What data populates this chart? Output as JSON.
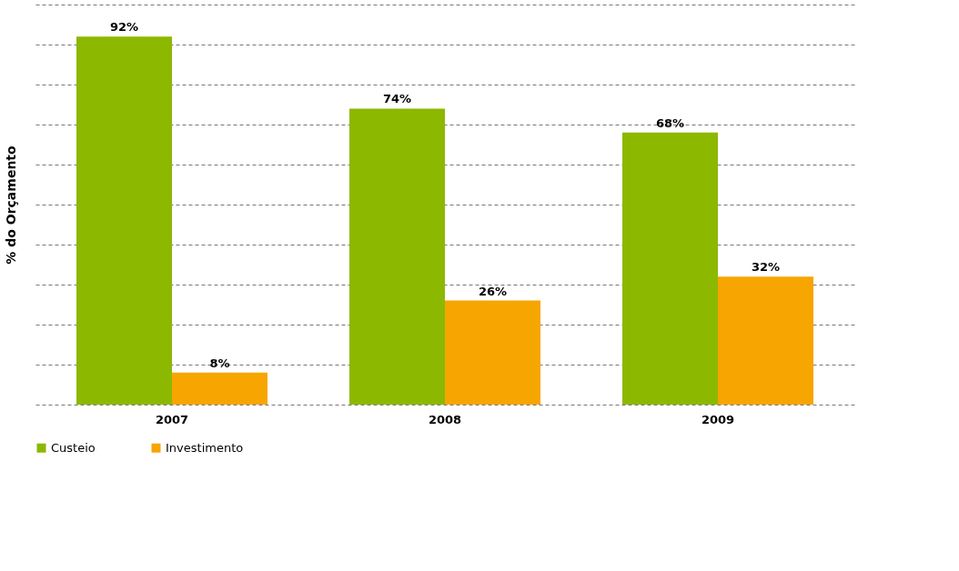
{
  "chart_data": {
    "type": "bar",
    "ylabel": "% do Orçamento",
    "categories": [
      "2007",
      "2008",
      "2009"
    ],
    "series": [
      {
        "name": "Custeio",
        "color": "#8cb800",
        "values": [
          92,
          74,
          68
        ],
        "value_labels": [
          "92%",
          "74%",
          "68%"
        ]
      },
      {
        "name": "Investimento",
        "color": "#f7a500",
        "values": [
          8,
          26,
          32
        ],
        "value_labels": [
          "8%",
          "26%",
          "32%"
        ]
      }
    ],
    "ylim": [
      0,
      100
    ],
    "yticks": [
      {
        "value": 0,
        "label": null
      },
      {
        "value": 10,
        "label": null
      },
      {
        "value": 20,
        "label": null
      },
      {
        "value": 30,
        "label": null
      },
      {
        "value": 40,
        "label": null
      },
      {
        "value": 50,
        "label": null
      },
      {
        "value": 60,
        "label": null
      },
      {
        "value": 70,
        "label": null
      },
      {
        "value": 80,
        "label": null
      },
      {
        "value": 90,
        "label": null
      },
      {
        "value": 100,
        "label": null
      }
    ],
    "tick_labels": "x",
    "grid": "y",
    "line_style": "dashed",
    "legend": "bottom"
  }
}
